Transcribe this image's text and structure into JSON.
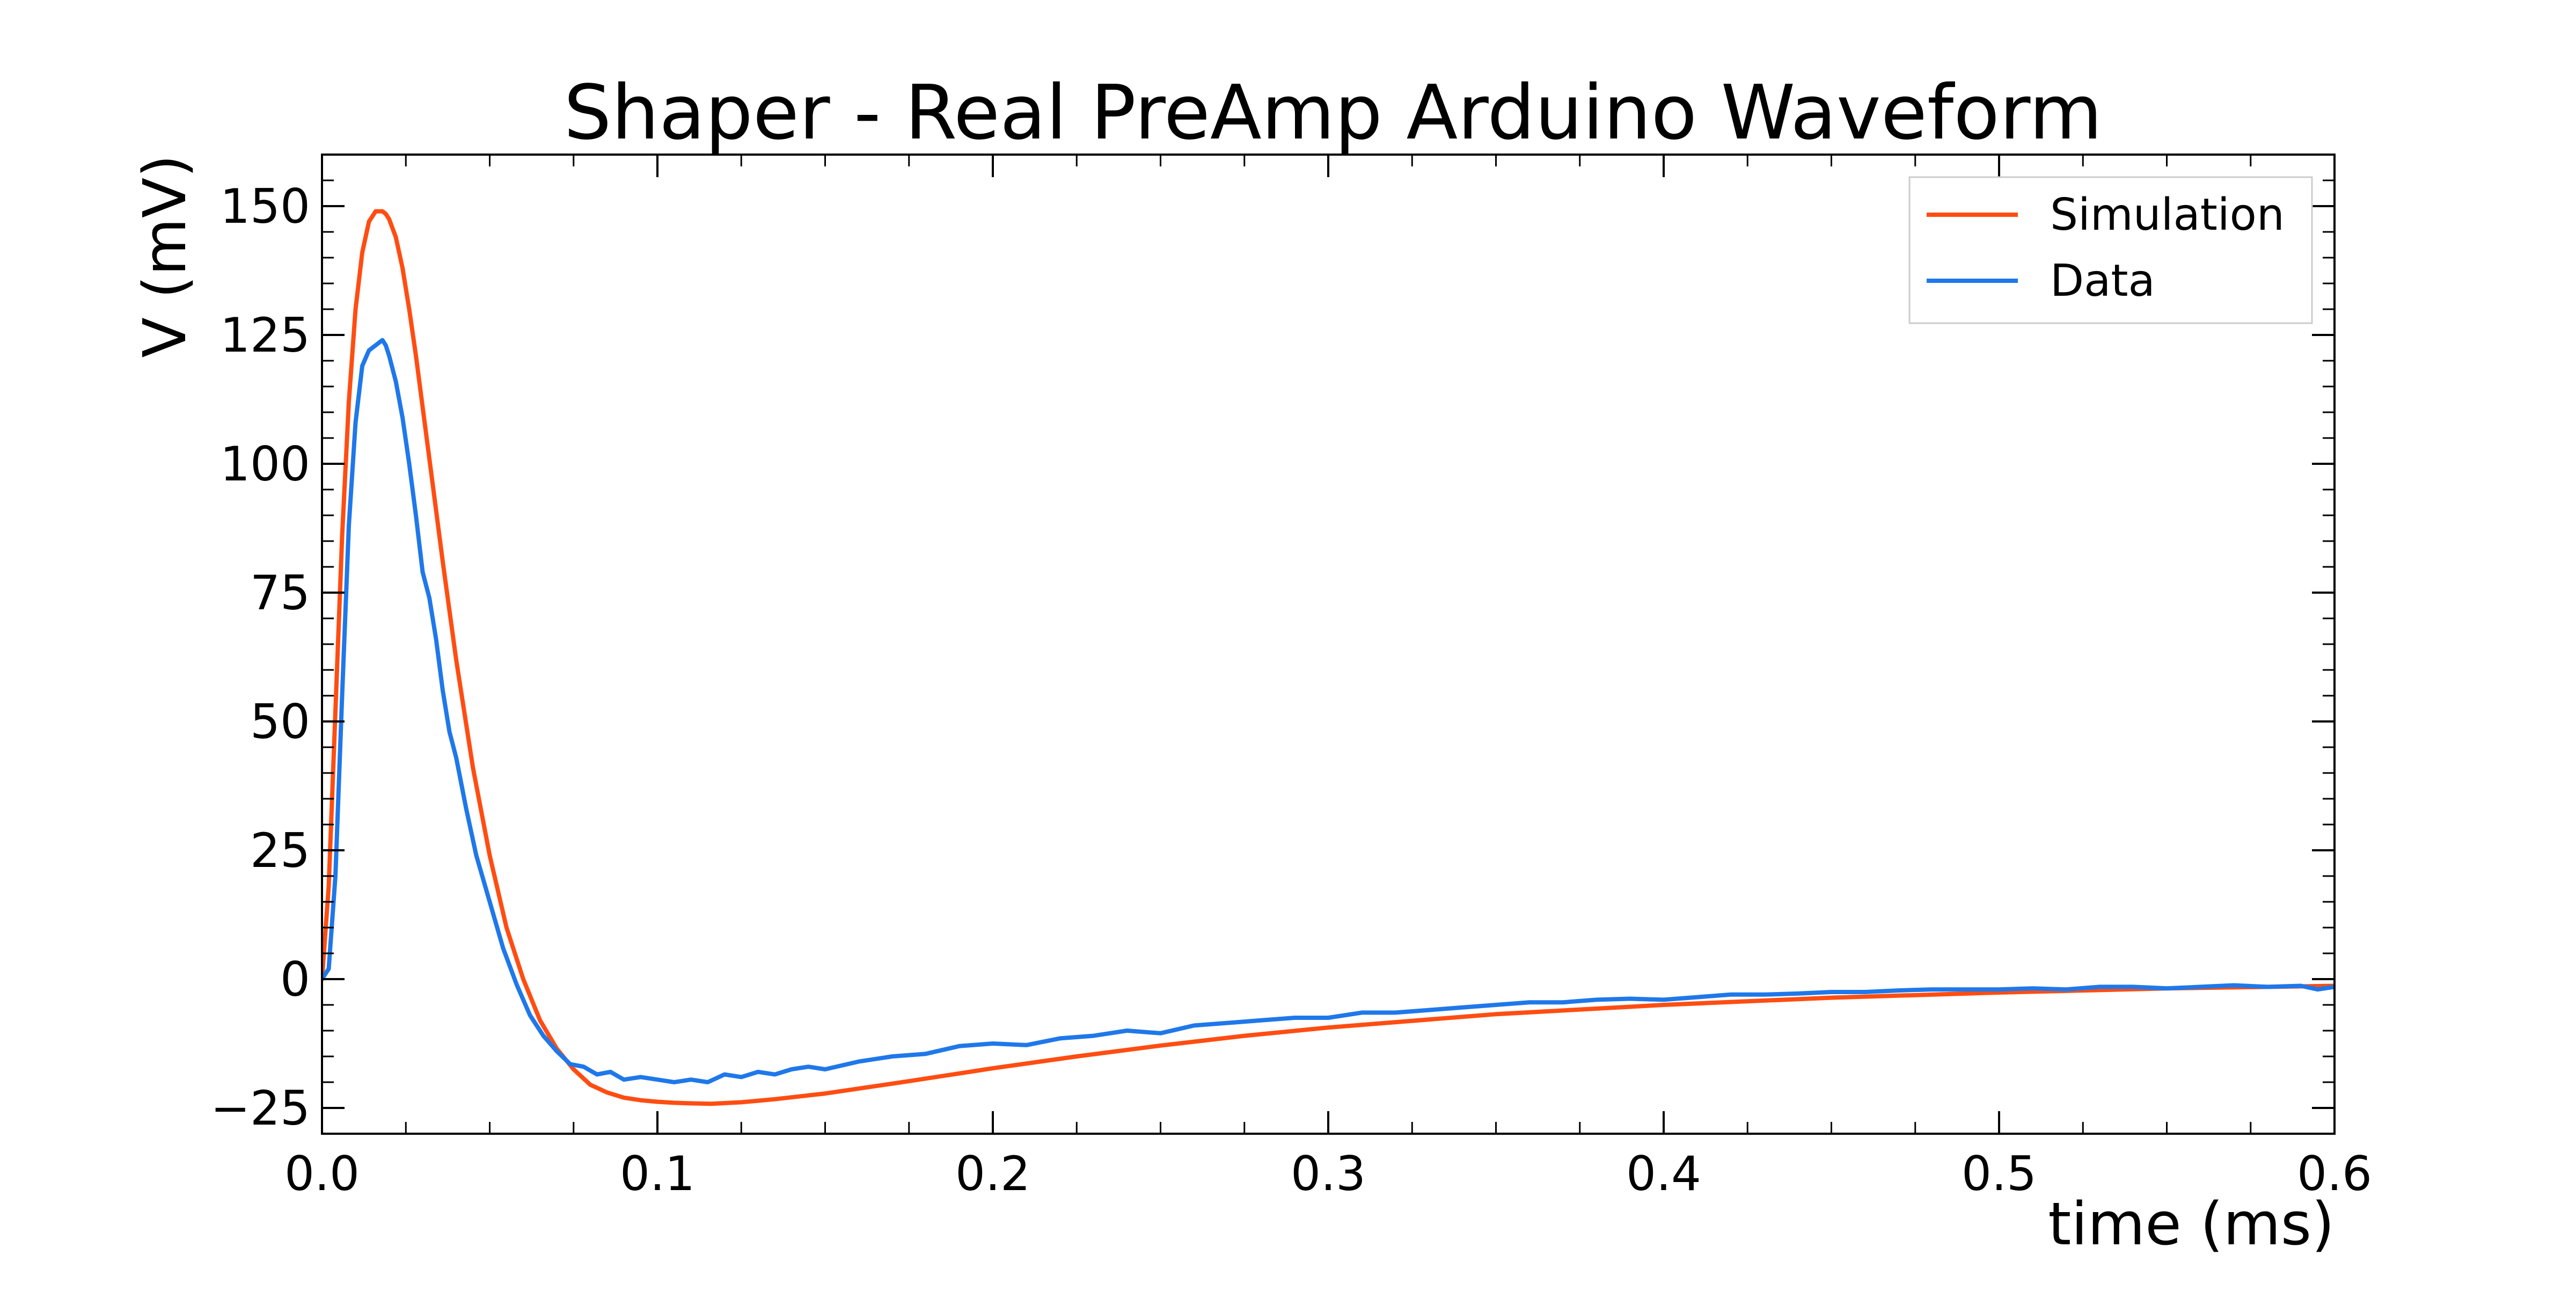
{
  "chart_data": {
    "type": "line",
    "title": "Shaper - Real PreAmp Arduino Waveform",
    "xlabel": "time (ms)",
    "ylabel": "V (mV)",
    "xlim": [
      0.0,
      0.6
    ],
    "ylim": [
      -30,
      160
    ],
    "xticks": [
      0.0,
      0.1,
      0.2,
      0.3,
      0.4,
      0.5,
      0.6
    ],
    "xtick_labels": [
      "0.0",
      "0.1",
      "0.2",
      "0.3",
      "0.4",
      "0.5",
      "0.6"
    ],
    "yticks": [
      -25,
      0,
      25,
      50,
      75,
      100,
      125,
      150
    ],
    "ytick_labels": [
      "−25",
      "0",
      "25",
      "50",
      "75",
      "100",
      "125",
      "150"
    ],
    "grid": false,
    "legend_position": "top-right",
    "series": [
      {
        "name": "Simulation",
        "color": "#ff4d12",
        "x": [
          0.0,
          0.002,
          0.004,
          0.006,
          0.008,
          0.01,
          0.012,
          0.014,
          0.016,
          0.018,
          0.019,
          0.02,
          0.022,
          0.024,
          0.026,
          0.028,
          0.03,
          0.033,
          0.036,
          0.04,
          0.045,
          0.05,
          0.055,
          0.06,
          0.065,
          0.07,
          0.075,
          0.08,
          0.085,
          0.09,
          0.095,
          0.1,
          0.105,
          0.11,
          0.116,
          0.125,
          0.135,
          0.15,
          0.175,
          0.2,
          0.225,
          0.25,
          0.275,
          0.3,
          0.35,
          0.4,
          0.45,
          0.5,
          0.55,
          0.6
        ],
        "y": [
          0,
          18,
          52,
          86,
          112,
          130,
          141,
          147,
          149,
          149,
          148.5,
          147.5,
          144,
          138,
          130,
          121,
          111,
          96,
          81,
          62,
          41,
          24,
          10,
          0,
          -8,
          -13.5,
          -17.5,
          -20.5,
          -22,
          -23,
          -23.5,
          -23.8,
          -24,
          -24.1,
          -24.2,
          -23.9,
          -23.3,
          -22.2,
          -19.8,
          -17.3,
          -15,
          -12.9,
          -11,
          -9.4,
          -6.8,
          -5,
          -3.6,
          -2.6,
          -1.8,
          -1.3
        ]
      },
      {
        "name": "Data",
        "color": "#1f78ea",
        "x": [
          0.0,
          0.002,
          0.004,
          0.006,
          0.008,
          0.01,
          0.012,
          0.014,
          0.016,
          0.018,
          0.019,
          0.02,
          0.022,
          0.024,
          0.026,
          0.028,
          0.03,
          0.032,
          0.034,
          0.036,
          0.038,
          0.04,
          0.043,
          0.046,
          0.05,
          0.054,
          0.058,
          0.062,
          0.066,
          0.07,
          0.074,
          0.078,
          0.082,
          0.086,
          0.09,
          0.095,
          0.1,
          0.105,
          0.11,
          0.115,
          0.12,
          0.125,
          0.13,
          0.135,
          0.14,
          0.145,
          0.15,
          0.16,
          0.17,
          0.18,
          0.19,
          0.2,
          0.21,
          0.22,
          0.23,
          0.24,
          0.25,
          0.26,
          0.27,
          0.28,
          0.29,
          0.3,
          0.31,
          0.32,
          0.33,
          0.34,
          0.35,
          0.36,
          0.37,
          0.38,
          0.39,
          0.4,
          0.41,
          0.42,
          0.43,
          0.44,
          0.45,
          0.46,
          0.47,
          0.48,
          0.49,
          0.5,
          0.51,
          0.52,
          0.53,
          0.54,
          0.55,
          0.56,
          0.57,
          0.58,
          0.59,
          0.595,
          0.6
        ],
        "y": [
          0,
          2,
          20,
          55,
          88,
          108,
          119,
          122,
          123,
          124,
          123,
          121,
          116,
          109,
          100,
          90,
          79,
          74,
          66,
          56,
          48,
          43,
          33,
          24,
          15,
          6,
          -1,
          -7,
          -11,
          -14,
          -16.5,
          -17,
          -18.5,
          -18,
          -19.5,
          -19,
          -19.5,
          -20,
          -19.5,
          -20,
          -18.5,
          -19,
          -18,
          -18.5,
          -17.5,
          -17,
          -17.5,
          -16,
          -15,
          -14.5,
          -13,
          -12.5,
          -12.8,
          -11.5,
          -11,
          -10,
          -10.5,
          -9,
          -8.5,
          -8,
          -7.5,
          -7.5,
          -6.5,
          -6.5,
          -6,
          -5.5,
          -5,
          -4.5,
          -4.5,
          -4,
          -3.8,
          -4,
          -3.5,
          -3,
          -3,
          -2.8,
          -2.5,
          -2.5,
          -2.2,
          -2,
          -2,
          -2,
          -1.8,
          -2,
          -1.5,
          -1.5,
          -1.8,
          -1.5,
          -1.2,
          -1.5,
          -1.3,
          -2,
          -1.5
        ]
      }
    ]
  }
}
